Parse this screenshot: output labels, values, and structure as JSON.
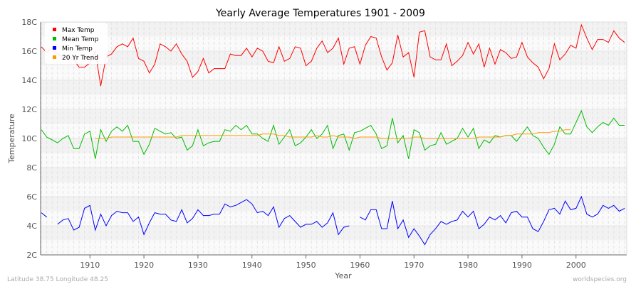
{
  "chart_data": {
    "type": "line",
    "title": "Yearly Average Temperatures 1901 - 2009",
    "xlabel": "Year",
    "ylabel": "Temperature",
    "xlim": [
      1901,
      2009
    ],
    "ylim": [
      2,
      18
    ],
    "x_ticks": [
      "1910",
      "1920",
      "1930",
      "1940",
      "1950",
      "1960",
      "1970",
      "1980",
      "1990",
      "2000"
    ],
    "y_ticks": [
      "2C",
      "4C",
      "6C",
      "8C",
      "10C",
      "12C",
      "14C",
      "16C",
      "18C"
    ],
    "grid": true,
    "legend": "top-left",
    "x_start": 1901,
    "series": [
      {
        "name": "Max Temp",
        "color": "#ff0000",
        "values": [
          16.3,
          15.9,
          16.2,
          15.8,
          15.6,
          15.6,
          15.4,
          14.9,
          14.9,
          15.2,
          16.0,
          13.6,
          15.6,
          15.8,
          16.3,
          16.5,
          16.3,
          16.9,
          15.5,
          15.3,
          14.5,
          15.1,
          16.5,
          16.3,
          16.0,
          16.5,
          15.8,
          15.3,
          14.2,
          14.6,
          15.5,
          14.5,
          14.8,
          14.8,
          14.8,
          15.8,
          15.7,
          15.7,
          16.2,
          15.6,
          16.2,
          16.0,
          15.3,
          15.2,
          16.3,
          15.3,
          15.5,
          16.3,
          16.2,
          15.0,
          15.3,
          16.2,
          16.7,
          15.9,
          16.2,
          16.9,
          15.1,
          16.2,
          16.3,
          15.1,
          16.4,
          17.0,
          16.9,
          15.6,
          14.7,
          15.2,
          17.1,
          15.6,
          15.9,
          14.2,
          17.3,
          17.4,
          15.6,
          15.4,
          15.4,
          16.5,
          15.0,
          15.3,
          15.7,
          16.6,
          15.8,
          16.5,
          14.9,
          16.2,
          15.1,
          16.1,
          15.9,
          15.5,
          15.6,
          16.6,
          15.6,
          15.2,
          14.9,
          14.1,
          14.8,
          16.5,
          15.4,
          15.8,
          16.4,
          16.2,
          17.8,
          16.9,
          16.1,
          16.8,
          16.8,
          16.6,
          17.4,
          16.9,
          16.6
        ]
      },
      {
        "name": "Mean Temp",
        "color": "#00bb00",
        "values": [
          10.6,
          10.1,
          9.9,
          9.7,
          10.0,
          10.2,
          9.3,
          9.3,
          10.3,
          10.5,
          8.6,
          10.6,
          9.8,
          10.5,
          10.8,
          10.5,
          10.9,
          9.8,
          9.8,
          8.9,
          9.6,
          10.7,
          10.5,
          10.3,
          10.4,
          10.0,
          10.1,
          9.2,
          9.5,
          10.6,
          9.5,
          9.7,
          9.8,
          9.8,
          10.6,
          10.5,
          10.9,
          10.6,
          10.9,
          10.3,
          10.3,
          10.0,
          9.8,
          10.9,
          9.6,
          10.1,
          10.6,
          9.5,
          9.7,
          10.1,
          10.6,
          10.0,
          10.3,
          10.9,
          9.3,
          10.2,
          10.3,
          9.2,
          10.4,
          10.5,
          10.7,
          10.9,
          10.3,
          9.3,
          9.5,
          11.4,
          9.7,
          10.2,
          8.6,
          10.6,
          10.4,
          9.2,
          9.5,
          9.6,
          10.4,
          9.6,
          9.8,
          10.0,
          10.7,
          10.1,
          10.7,
          9.3,
          9.9,
          9.7,
          10.2,
          10.1,
          10.2,
          10.2,
          9.8,
          10.3,
          10.8,
          10.2,
          10.0,
          9.4,
          8.9,
          9.6,
          10.8,
          10.3,
          10.3,
          11.1,
          11.9,
          10.8,
          10.4,
          10.8,
          11.1,
          10.9,
          11.4,
          10.9,
          10.9
        ]
      },
      {
        "name": "Min Temp",
        "color": "#0000ff",
        "values": [
          4.9,
          4.6,
          null,
          4.1,
          4.4,
          4.5,
          3.7,
          3.9,
          5.2,
          5.4,
          3.7,
          4.8,
          4.0,
          4.7,
          5.0,
          4.9,
          4.9,
          4.3,
          4.6,
          3.4,
          4.2,
          4.9,
          4.8,
          4.8,
          4.4,
          4.3,
          5.1,
          4.2,
          4.5,
          5.1,
          4.7,
          4.7,
          4.8,
          4.8,
          5.5,
          5.3,
          5.4,
          5.6,
          5.8,
          5.5,
          4.9,
          5.0,
          4.7,
          5.3,
          3.9,
          4.5,
          4.7,
          4.3,
          3.9,
          4.1,
          4.1,
          4.3,
          3.9,
          4.2,
          4.9,
          3.4,
          3.9,
          4.0,
          null,
          4.6,
          4.4,
          5.1,
          5.1,
          3.8,
          3.8,
          5.7,
          3.8,
          4.4,
          3.2,
          3.8,
          3.3,
          2.7,
          3.4,
          3.8,
          4.3,
          4.1,
          4.3,
          4.4,
          5.0,
          4.6,
          5.0,
          3.8,
          4.1,
          4.6,
          4.4,
          4.7,
          4.2,
          4.9,
          5.0,
          4.6,
          4.6,
          3.8,
          3.6,
          4.3,
          5.1,
          5.2,
          4.8,
          5.7,
          5.1,
          5.2,
          6.0,
          4.8,
          4.6,
          4.8,
          5.4,
          5.2,
          5.4,
          5.0,
          5.2
        ]
      },
      {
        "name": "20 Yr Trend",
        "color": "#ff9900",
        "values": [
          null,
          null,
          null,
          null,
          null,
          null,
          null,
          null,
          null,
          null,
          10.0,
          10.0,
          10.0,
          10.1,
          10.1,
          10.1,
          10.1,
          10.1,
          10.1,
          10.1,
          10.1,
          10.1,
          10.1,
          10.1,
          10.1,
          10.1,
          10.2,
          10.2,
          10.2,
          10.2,
          10.2,
          10.2,
          10.2,
          10.2,
          10.2,
          10.2,
          10.2,
          10.2,
          10.2,
          10.2,
          10.2,
          10.3,
          10.3,
          10.3,
          10.2,
          10.2,
          10.1,
          10.1,
          10.1,
          10.1,
          10.1,
          10.2,
          10.1,
          10.1,
          10.2,
          10.1,
          10.1,
          10.1,
          10.0,
          10.1,
          10.1,
          10.1,
          10.1,
          10.0,
          10.0,
          10.0,
          10.0,
          10.0,
          10.0,
          10.1,
          10.1,
          10.0,
          10.0,
          10.0,
          10.0,
          10.0,
          10.0,
          10.0,
          10.0,
          10.0,
          10.0,
          10.1,
          10.1,
          10.1,
          10.1,
          10.1,
          10.2,
          10.2,
          10.3,
          10.3,
          10.3,
          10.3,
          10.4,
          10.4,
          10.4,
          10.5,
          10.5,
          10.6,
          10.6,
          null,
          null,
          null,
          null,
          null,
          null,
          null,
          null,
          null,
          null
        ]
      }
    ]
  },
  "footer": {
    "location": "Latitude 38.75 Longitude 48.25",
    "source": "worldspecies.org"
  }
}
